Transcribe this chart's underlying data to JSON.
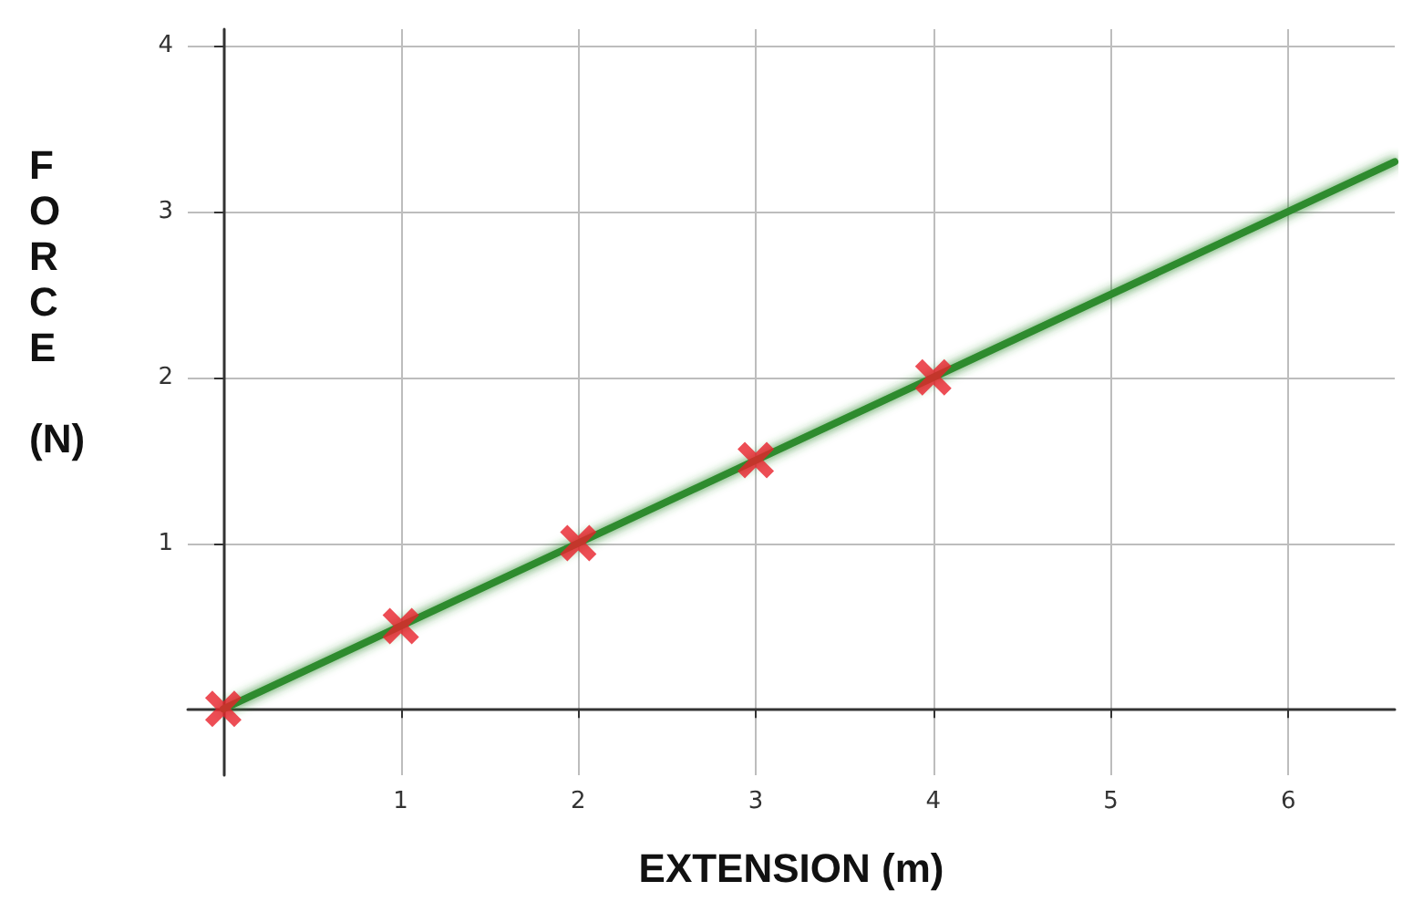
{
  "chart_data": {
    "type": "scatter",
    "xlabel": "EXTENSION (m)",
    "ylabel": "FORCE (N)",
    "xlim": [
      -0.2,
      6.6
    ],
    "ylim": [
      -0.4,
      4.1
    ],
    "xticks": [
      1,
      2,
      3,
      4,
      5,
      6
    ],
    "yticks": [
      1,
      2,
      3,
      4
    ],
    "grid": true,
    "series": [
      {
        "type": "line",
        "color": "#2e8b2e",
        "x": [
          0,
          6.6
        ],
        "values": [
          0,
          3.3
        ],
        "marker": "none",
        "line_style": "solid"
      },
      {
        "color": "#e8202a",
        "x": [
          0,
          1,
          2,
          3,
          4
        ],
        "values": [
          0,
          0.5,
          1,
          1.5,
          2
        ],
        "marker": "cross"
      }
    ]
  }
}
